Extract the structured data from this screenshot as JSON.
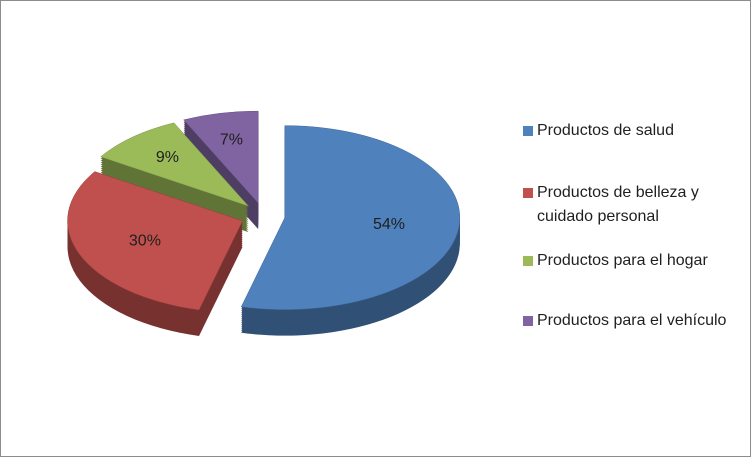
{
  "chart_data": {
    "type": "pie",
    "categories": [
      "Productos de salud",
      "Productos de belleza y cuidado personal",
      "Productos para el hogar",
      "Productos para el vehículo"
    ],
    "values": [
      54,
      30,
      9,
      7
    ],
    "value_labels": [
      "54%",
      "30%",
      "9%",
      "7%"
    ],
    "colors": [
      "#4f81bd",
      "#c0504d",
      "#9bbb59",
      "#8064a2"
    ],
    "legend": "right"
  }
}
